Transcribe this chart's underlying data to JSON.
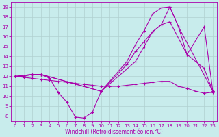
{
  "xlabel": "Windchill (Refroidissement éolien,°C)",
  "bg_color": "#c8ecec",
  "grid_color": "#b0d0d0",
  "line_color": "#aa00aa",
  "xlim": [
    -0.5,
    23.5
  ],
  "ylim": [
    7.5,
    19.5
  ],
  "xticks": [
    0,
    1,
    2,
    3,
    4,
    5,
    6,
    7,
    8,
    9,
    10,
    11,
    12,
    13,
    14,
    15,
    16,
    17,
    18,
    19,
    20,
    21,
    22,
    23
  ],
  "yticks": [
    8,
    9,
    10,
    11,
    12,
    13,
    14,
    15,
    16,
    17,
    18,
    19
  ],
  "curve1_x": [
    0,
    2,
    3,
    10,
    13,
    14,
    15,
    16,
    17,
    18,
    19,
    20,
    22,
    23
  ],
  "curve1_y": [
    12,
    12.2,
    12.2,
    10.5,
    13.5,
    15.2,
    16.6,
    18.3,
    18.9,
    19.0,
    17.0,
    14.2,
    12.8,
    10.5
  ],
  "curve2_x": [
    0,
    2,
    3,
    10,
    13,
    14,
    15,
    16,
    17,
    18,
    20,
    22,
    23
  ],
  "curve2_y": [
    12,
    12.2,
    12.2,
    10.5,
    13.2,
    14.5,
    15.5,
    16.5,
    17.2,
    17.5,
    14.2,
    17.0,
    10.5
  ],
  "curve3_x": [
    0,
    1,
    2,
    3,
    4,
    5,
    6,
    7,
    8,
    9,
    10,
    14,
    15,
    16,
    17,
    18,
    19,
    23
  ],
  "curve3_y": [
    12,
    12,
    12.2,
    12.2,
    11.8,
    10.4,
    9.4,
    7.9,
    7.8,
    8.4,
    10.5,
    13.5,
    15.0,
    16.5,
    17.2,
    19.0,
    17.0,
    10.5
  ],
  "curve4_x": [
    0,
    1,
    2,
    3,
    4,
    5,
    6,
    7,
    8,
    9,
    10,
    11,
    12,
    13,
    14,
    15,
    16,
    17,
    18,
    19,
    20,
    21,
    22,
    23
  ],
  "curve4_y": [
    12,
    11.9,
    11.8,
    11.7,
    11.6,
    11.5,
    11.4,
    11.3,
    11.2,
    11.1,
    11.0,
    11.0,
    11.0,
    11.1,
    11.2,
    11.3,
    11.4,
    11.5,
    11.5,
    11.0,
    10.8,
    10.5,
    10.3,
    10.4
  ]
}
